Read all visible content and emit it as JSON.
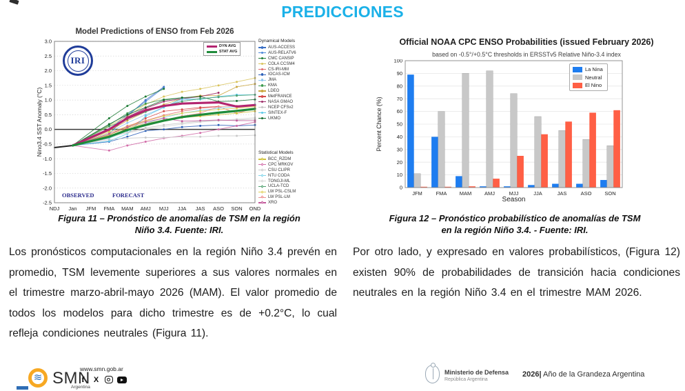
{
  "page": {
    "title": "PREDICCIONES",
    "accent_color": "#1BB1E8",
    "background": "#FFFFFF"
  },
  "figure11": {
    "caption": [
      "Figura 11 – Pronóstico de anomalías de TSM en la región",
      "Niño 3.4. Fuente: IRI."
    ],
    "logo": "IRI",
    "avg_legend": [
      {
        "label": "DYN AVG",
        "color": "#B3246F"
      },
      {
        "label": "STAT AVG",
        "color": "#1E8B3A"
      }
    ],
    "dynamical_header": "Dynamical Models",
    "dynamical": [
      {
        "label": "AUS-ACCESS",
        "color": "#3A6FC4"
      },
      {
        "label": "AUS-RELATV6",
        "color": "#4B86D8"
      },
      {
        "label": "CMC CANSIP",
        "color": "#1C7A33"
      },
      {
        "label": "COLA CCSM4",
        "color": "#D8C35A"
      },
      {
        "label": "CS-IRI-MM",
        "color": "#E06A6A"
      },
      {
        "label": "IOCAS-ICM",
        "color": "#2B5FB8"
      },
      {
        "label": "JMA",
        "color": "#8FC7EE"
      },
      {
        "label": "KMA",
        "color": "#3C9A4E"
      },
      {
        "label": "LDEO",
        "color": "#C9A53C"
      },
      {
        "label": "MetFRANCE",
        "color": "#D44A4A"
      },
      {
        "label": "NASA GMAO",
        "color": "#9C2B66"
      },
      {
        "label": "NCEP CFSv2",
        "color": "#C4C4C4"
      },
      {
        "label": "SINTEX-F",
        "color": "#5BC8E8"
      },
      {
        "label": "UKMO",
        "color": "#156B2F"
      }
    ],
    "statistical_header": "Statistical Models",
    "statistical": [
      {
        "label": "BCC_RZDM",
        "color": "#CFC23A"
      },
      {
        "label": "CPC MRKOV",
        "color": "#D26CA8"
      },
      {
        "label": "CSU CLIPR",
        "color": "#C9C9C9"
      },
      {
        "label": "NTU CODA",
        "color": "#7FD4EA"
      },
      {
        "label": "TONGJI-ML",
        "color": "#D4D4D4"
      },
      {
        "label": "UCLA-TCD",
        "color": "#4A9E6B"
      },
      {
        "label": "LW PSL-CSLM",
        "color": "#E0CE55"
      },
      {
        "label": "LW PSL-LM",
        "color": "#EE9090"
      },
      {
        "label": "XRO",
        "color": "#C2589A"
      }
    ]
  },
  "figure12": {
    "caption": [
      "Figura 12 – Pronóstico probabilístico de anomalías de TSM",
      "en la región Niño 3.4. - Fuente: IRI."
    ]
  },
  "paragraphs": {
    "left": "Los pronósticos computacionales en la región Niño 3.4 prevén en promedio, TSM levemente superiores a sus valores normales en el trimestre marzo-abril-mayo 2026 (MAM). El valor promedio de todos los modelos para dicho trimestre es de +0.2°C, lo cual refleja condiciones neutrales (Figura 11).",
    "right": "Por otro lado, y expresado en valores probabilísticos, (Figura 12) existen 90% de probabilidades de transición hacia condiciones neutrales en la región Niño 3.4 en el trimestre MAM 2026."
  },
  "footer": {
    "smn": "SMN",
    "smn_sub": "Argentina",
    "url": "www.smn.gob.ar",
    "social": [
      {
        "name": "facebook",
        "glyph": "f"
      },
      {
        "name": "x",
        "glyph": "X"
      },
      {
        "name": "instagram"
      },
      {
        "name": "youtube"
      }
    ],
    "ministry": "Ministerio de Defensa",
    "ministry_sub": "República Argentina",
    "year_bold": "2026|",
    "year_rest": " Año de la Grandeza Argentina"
  },
  "chart_data": [
    {
      "type": "line",
      "title": "Model Predictions of ENSO from Feb 2026",
      "ylabel": "Nino3.4 SST Anomaly (°C)",
      "x": [
        "NDJ",
        "Jan",
        "JFM",
        "FMA",
        "MAM",
        "AMJ",
        "MJJ",
        "JJA",
        "JAS",
        "ASO",
        "SON",
        "OND"
      ],
      "ylim": [
        -2.5,
        3.0
      ],
      "yticks": [
        3.0,
        2.5,
        2.0,
        1.5,
        1.0,
        0.5,
        0.0,
        -0.5,
        -1.0,
        -1.5,
        -2.0,
        -2.5
      ],
      "annotations": {
        "observed": "OBSERVED",
        "forecast": "FORECAST"
      },
      "grid": true,
      "series": [
        {
          "name": "Observed",
          "color": "#222222",
          "width": 2.0,
          "avg": true,
          "values": [
            -0.62,
            -0.55,
            null,
            null,
            null,
            null,
            null,
            null,
            null,
            null,
            null,
            null
          ]
        },
        {
          "name": "AUS-ACCESS",
          "color": "#3A6FC4",
          "width": 0.9,
          "values": [
            null,
            -0.55,
            null,
            -0.15,
            0.45,
            1.0,
            1.45,
            null,
            null,
            null,
            null,
            null
          ]
        },
        {
          "name": "AUS-RELATV6",
          "color": "#4B86D8",
          "width": 0.9,
          "values": [
            null,
            -0.55,
            null,
            0.0,
            0.5,
            0.95,
            1.42,
            null,
            null,
            null,
            null,
            null
          ]
        },
        {
          "name": "CMC CANSIP",
          "color": "#1C7A33",
          "width": 0.9,
          "values": [
            null,
            -0.55,
            null,
            0.38,
            0.8,
            1.12,
            1.38,
            null,
            null,
            null,
            null,
            null
          ]
        },
        {
          "name": "COLA CCSM4",
          "color": "#D8C35A",
          "width": 0.9,
          "values": [
            null,
            -0.55,
            null,
            0.12,
            0.45,
            0.85,
            1.12,
            1.28,
            1.38,
            1.5,
            1.62,
            1.75
          ]
        },
        {
          "name": "CS-IRI-MM",
          "color": "#E06A6A",
          "width": 0.9,
          "values": [
            null,
            -0.55,
            null,
            -0.2,
            0.12,
            0.3,
            0.48,
            0.62,
            0.72,
            0.78,
            0.55,
            0.72
          ]
        },
        {
          "name": "IOCAS-ICM",
          "color": "#2B5FB8",
          "width": 0.9,
          "values": [
            null,
            -0.55,
            null,
            -0.42,
            -0.25,
            -0.05,
            0.0,
            0.08,
            0.12,
            0.15,
            0.12,
            0.15
          ]
        },
        {
          "name": "JMA",
          "color": "#8FC7EE",
          "width": 0.9,
          "values": [
            null,
            -0.55,
            null,
            -0.1,
            0.22,
            0.5,
            0.75,
            1.0,
            1.05,
            1.1,
            null,
            null
          ]
        },
        {
          "name": "KMA",
          "color": "#3C9A4E",
          "width": 0.9,
          "values": [
            null,
            -0.55,
            null,
            0.15,
            0.55,
            0.88,
            1.02,
            1.08,
            null,
            null,
            null,
            null
          ]
        },
        {
          "name": "LDEO",
          "color": "#C9A53C",
          "width": 0.9,
          "values": [
            null,
            -0.55,
            null,
            -0.05,
            0.3,
            0.6,
            0.85,
            1.05,
            1.15,
            1.15,
            1.45,
            1.55
          ]
        },
        {
          "name": "MetFRANCE",
          "color": "#D44A4A",
          "width": 0.9,
          "values": [
            null,
            -0.55,
            null,
            -0.3,
            0.05,
            0.38,
            0.62,
            0.68,
            0.75,
            0.78,
            null,
            null
          ]
        },
        {
          "name": "NASA GMAO",
          "color": "#9C2B66",
          "width": 1.1,
          "values": [
            null,
            -0.55,
            null,
            0.0,
            0.42,
            0.72,
            0.95,
            1.05,
            1.12,
            1.25,
            null,
            null
          ]
        },
        {
          "name": "NCEP CFSv2",
          "color": "#C4C4C4",
          "width": 0.9,
          "values": [
            null,
            -0.55,
            null,
            -0.28,
            -0.1,
            0.05,
            0.15,
            0.22,
            0.28,
            0.3,
            0.32,
            0.35
          ]
        },
        {
          "name": "SINTEX-F",
          "color": "#5BC8E8",
          "width": 0.9,
          "values": [
            null,
            -0.55,
            null,
            -0.4,
            -0.15,
            0.45,
            0.75,
            1.05,
            1.02,
            1.12,
            1.18,
            1.18
          ]
        },
        {
          "name": "UKMO",
          "color": "#156B2F",
          "width": 0.9,
          "values": [
            null,
            -0.55,
            null,
            0.18,
            0.5,
            0.75,
            1.0,
            1.08,
            1.12,
            0.95,
            0.97,
            1.02
          ]
        },
        {
          "name": "BCC_RZDM",
          "color": "#CFC23A",
          "width": 0.9,
          "values": [
            null,
            -0.55,
            null,
            -0.18,
            0.05,
            0.2,
            0.32,
            0.4,
            0.45,
            0.5,
            0.55,
            0.62
          ]
        },
        {
          "name": "CPC MRKOV",
          "color": "#D26CA8",
          "width": 0.9,
          "values": [
            null,
            -0.55,
            null,
            -0.72,
            -0.55,
            -0.42,
            -0.3,
            -0.22,
            -0.12,
            0.0,
            0.12,
            0.25
          ]
        },
        {
          "name": "CSU CLIPR",
          "color": "#C9C9C9",
          "width": 0.9,
          "values": [
            null,
            -0.55,
            null,
            -0.35,
            -0.3,
            -0.28,
            -0.28,
            -0.25,
            -0.25,
            -0.22,
            -0.22,
            -0.2
          ]
        },
        {
          "name": "NTU CODA",
          "color": "#7FD4EA",
          "width": 0.9,
          "values": [
            null,
            -0.55,
            null,
            -0.3,
            -0.05,
            0.2,
            0.4,
            0.55,
            0.65,
            0.72,
            0.78,
            0.85
          ]
        },
        {
          "name": "TONGJI-ML",
          "color": "#D4D4D4",
          "width": 0.9,
          "values": [
            null,
            -0.55,
            null,
            -0.25,
            -0.12,
            0.0,
            0.1,
            0.18,
            0.25,
            0.3,
            0.35,
            0.4
          ]
        },
        {
          "name": "UCLA-TCD",
          "color": "#4A9E6B",
          "width": 0.9,
          "values": [
            null,
            -0.55,
            null,
            0.1,
            0.35,
            0.6,
            0.8,
            0.95,
            1.05,
            1.1,
            1.15,
            1.18
          ]
        },
        {
          "name": "LW PSL-CSLM",
          "color": "#E0CE55",
          "width": 0.9,
          "values": [
            null,
            -0.55,
            null,
            -0.1,
            0.1,
            0.28,
            0.45,
            0.55,
            0.62,
            0.68,
            0.72,
            0.78
          ]
        },
        {
          "name": "LW PSL-LM",
          "color": "#EE9090",
          "width": 0.9,
          "values": [
            null,
            -0.55,
            null,
            -0.22,
            0.0,
            0.18,
            0.32,
            0.45,
            0.55,
            0.78,
            0.8,
            0.82
          ]
        },
        {
          "name": "XRO",
          "color": "#C2589A",
          "width": 0.9,
          "values": [
            null,
            -0.55,
            null,
            -0.15,
            0.08,
            0.25,
            0.38,
            0.28,
            0.3,
            0.32,
            0.3,
            0.3
          ]
        },
        {
          "name": "DYN AVG",
          "color": "#B3246F",
          "width": 3.2,
          "avg": true,
          "values": [
            null,
            -0.55,
            null,
            0.0,
            0.38,
            0.65,
            0.8,
            0.88,
            0.9,
            0.92,
            0.78,
            0.83
          ]
        },
        {
          "name": "STAT AVG",
          "color": "#1E8B3A",
          "width": 3.2,
          "avg": true,
          "values": [
            null,
            -0.55,
            null,
            -0.25,
            -0.02,
            0.15,
            0.3,
            0.42,
            0.5,
            0.57,
            0.63,
            0.7
          ]
        }
      ]
    },
    {
      "type": "bar",
      "title": "Official NOAA CPC ENSO Probabilities (issued February 2026)",
      "subtitle": "based on -0.5°/+0.5°C thresholds in ERSSTv5 Relative Niño-3.4 index",
      "xlabel": "Season",
      "ylabel": "Percent Chance (%)",
      "ylim": [
        0,
        100
      ],
      "yticks": [
        0,
        10,
        20,
        30,
        40,
        50,
        60,
        70,
        80,
        90,
        100
      ],
      "categories": [
        "JFM",
        "FMA",
        "MAM",
        "AMJ",
        "MJJ",
        "JJA",
        "JAS",
        "ASO",
        "SON"
      ],
      "legend_position": "upper right",
      "grid": true,
      "series": [
        {
          "name": "La Nina",
          "color": "#1E7DF0",
          "values": [
            89,
            40,
            9,
            1,
            1,
            2,
            3,
            3,
            6
          ]
        },
        {
          "name": "Neutral",
          "color": "#C8C8C8",
          "values": [
            11,
            60,
            90,
            92,
            74,
            56,
            45,
            38,
            33
          ]
        },
        {
          "name": "El Nino",
          "color": "#FF5F45",
          "values": [
            0.5,
            0.5,
            1,
            7,
            25,
            42,
            52,
            59,
            61
          ]
        }
      ]
    }
  ]
}
